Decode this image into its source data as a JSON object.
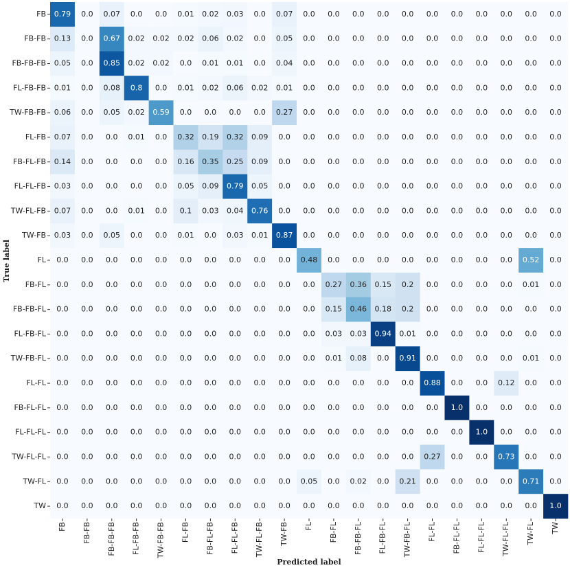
{
  "chart_data": {
    "type": "heatmap",
    "xlabel": "Predicted label",
    "ylabel": "True label",
    "colormap": "Blues",
    "x_categories": [
      "FB",
      "FB-FB",
      "FB-FB-FB",
      "FL-FB-FB",
      "TW-FB-FB",
      "FL-FB",
      "FB-FL-FB",
      "FL-FL-FB",
      "TW-FL-FB",
      "TW-FB",
      "FL",
      "FB-FL",
      "FB-FB-FL",
      "FL-FB-FL",
      "TW-FB-FL",
      "FL-FL",
      "FB-FL-FL",
      "FL-FL-FL",
      "TW-FL-FL",
      "TW-FL",
      "TW"
    ],
    "y_categories": [
      "FB",
      "FB-FB",
      "FB-FB-FB",
      "FL-FB-FB",
      "TW-FB-FB",
      "FL-FB",
      "FB-FL-FB",
      "FL-FL-FB",
      "TW-FL-FB",
      "TW-FB",
      "FL",
      "FB-FL",
      "FB-FB-FL",
      "FL-FB-FL",
      "TW-FB-FL",
      "FL-FL",
      "FB-FL-FL",
      "FL-FL-FL",
      "TW-FL-FL",
      "TW-FL",
      "TW"
    ],
    "values": [
      [
        0.79,
        0,
        0.07,
        0,
        0,
        0.01,
        0.02,
        0.03,
        0,
        0.07,
        0,
        0,
        0,
        0,
        0,
        0,
        0,
        0,
        0,
        0,
        0
      ],
      [
        0.13,
        0,
        0.67,
        0.02,
        0.02,
        0.02,
        0.06,
        0.02,
        0,
        0.05,
        0,
        0,
        0,
        0,
        0,
        0,
        0,
        0,
        0,
        0,
        0
      ],
      [
        0.05,
        0,
        0.85,
        0.02,
        0.02,
        0,
        0.01,
        0.01,
        0,
        0.04,
        0,
        0,
        0,
        0,
        0,
        0,
        0,
        0,
        0,
        0,
        0
      ],
      [
        0.01,
        0,
        0.08,
        0.8,
        0,
        0.01,
        0.02,
        0.06,
        0.02,
        0.01,
        0,
        0,
        0,
        0,
        0,
        0,
        0,
        0,
        0,
        0,
        0
      ],
      [
        0.06,
        0,
        0.05,
        0.02,
        0.59,
        0,
        0,
        0,
        0,
        0.27,
        0,
        0,
        0,
        0,
        0,
        0,
        0,
        0,
        0,
        0,
        0
      ],
      [
        0.07,
        0,
        0,
        0.01,
        0,
        0.32,
        0.19,
        0.32,
        0.09,
        0,
        0,
        0,
        0,
        0,
        0,
        0,
        0,
        0,
        0,
        0,
        0
      ],
      [
        0.14,
        0,
        0,
        0,
        0,
        0.16,
        0.35,
        0.25,
        0.09,
        0,
        0,
        0,
        0,
        0,
        0,
        0,
        0,
        0,
        0,
        0,
        0
      ],
      [
        0.03,
        0,
        0,
        0,
        0,
        0.05,
        0.09,
        0.79,
        0.05,
        0,
        0,
        0,
        0,
        0,
        0,
        0,
        0,
        0,
        0,
        0,
        0
      ],
      [
        0.07,
        0,
        0,
        0.01,
        0,
        0.1,
        0.03,
        0.04,
        0.76,
        0,
        0,
        0,
        0,
        0,
        0,
        0,
        0,
        0,
        0,
        0,
        0
      ],
      [
        0.03,
        0,
        0.05,
        0,
        0,
        0.01,
        0,
        0.03,
        0.01,
        0.87,
        0,
        0,
        0,
        0,
        0,
        0,
        0,
        0,
        0,
        0,
        0
      ],
      [
        0,
        0,
        0,
        0,
        0,
        0,
        0,
        0,
        0,
        0,
        0.48,
        0,
        0,
        0,
        0,
        0,
        0,
        0,
        0,
        0.52,
        0
      ],
      [
        0,
        0,
        0,
        0,
        0,
        0,
        0,
        0,
        0,
        0,
        0,
        0.27,
        0.36,
        0.15,
        0.2,
        0,
        0,
        0,
        0,
        0.01,
        0
      ],
      [
        0,
        0,
        0,
        0,
        0,
        0,
        0,
        0,
        0,
        0,
        0,
        0.15,
        0.46,
        0.18,
        0.2,
        0,
        0,
        0,
        0,
        0,
        0
      ],
      [
        0,
        0,
        0,
        0,
        0,
        0,
        0,
        0,
        0,
        0,
        0,
        0.03,
        0.03,
        0.94,
        0.01,
        0,
        0,
        0,
        0,
        0,
        0
      ],
      [
        0,
        0,
        0,
        0,
        0,
        0,
        0,
        0,
        0,
        0,
        0,
        0.01,
        0.08,
        0,
        0.91,
        0,
        0,
        0,
        0,
        0.01,
        0
      ],
      [
        0,
        0,
        0,
        0,
        0,
        0,
        0,
        0,
        0,
        0,
        0,
        0,
        0,
        0,
        0,
        0.88,
        0,
        0,
        0.12,
        0,
        0
      ],
      [
        0,
        0,
        0,
        0,
        0,
        0,
        0,
        0,
        0,
        0,
        0,
        0,
        0,
        0,
        0,
        0,
        1,
        0,
        0,
        0,
        0
      ],
      [
        0,
        0,
        0,
        0,
        0,
        0,
        0,
        0,
        0,
        0,
        0,
        0,
        0,
        0,
        0,
        0,
        0,
        1,
        0,
        0,
        0
      ],
      [
        0,
        0,
        0,
        0,
        0,
        0,
        0,
        0,
        0,
        0,
        0,
        0,
        0,
        0,
        0,
        0.27,
        0,
        0,
        0.73,
        0,
        0
      ],
      [
        0,
        0,
        0,
        0,
        0,
        0,
        0,
        0,
        0,
        0,
        0.05,
        0,
        0.02,
        0,
        0.21,
        0,
        0,
        0,
        0,
        0.71,
        0
      ],
      [
        0,
        0,
        0,
        0,
        0,
        0,
        0,
        0,
        0,
        0,
        0,
        0,
        0,
        0,
        0,
        0,
        0,
        0,
        0,
        0,
        1
      ]
    ],
    "value_labels": [
      [
        "0.79",
        "0.0",
        "0.07",
        "0.0",
        "0.0",
        "0.01",
        "0.02",
        "0.03",
        "0.0",
        "0.07",
        "0.0",
        "0.0",
        "0.0",
        "0.0",
        "0.0",
        "0.0",
        "0.0",
        "0.0",
        "0.0",
        "0.0",
        "0.0"
      ],
      [
        "0.13",
        "0.0",
        "0.67",
        "0.02",
        "0.02",
        "0.02",
        "0.06",
        "0.02",
        "0.0",
        "0.05",
        "0.0",
        "0.0",
        "0.0",
        "0.0",
        "0.0",
        "0.0",
        "0.0",
        "0.0",
        "0.0",
        "0.0",
        "0.0"
      ],
      [
        "0.05",
        "0.0",
        "0.85",
        "0.02",
        "0.02",
        "0.0",
        "0.01",
        "0.01",
        "0.0",
        "0.04",
        "0.0",
        "0.0",
        "0.0",
        "0.0",
        "0.0",
        "0.0",
        "0.0",
        "0.0",
        "0.0",
        "0.0",
        "0.0"
      ],
      [
        "0.01",
        "0.0",
        "0.08",
        "0.8",
        "0.0",
        "0.01",
        "0.02",
        "0.06",
        "0.02",
        "0.01",
        "0.0",
        "0.0",
        "0.0",
        "0.0",
        "0.0",
        "0.0",
        "0.0",
        "0.0",
        "0.0",
        "0.0",
        "0.0"
      ],
      [
        "0.06",
        "0.0",
        "0.05",
        "0.02",
        "0.59",
        "0.0",
        "0.0",
        "0.0",
        "0.0",
        "0.27",
        "0.0",
        "0.0",
        "0.0",
        "0.0",
        "0.0",
        "0.0",
        "0.0",
        "0.0",
        "0.0",
        "0.0",
        "0.0"
      ],
      [
        "0.07",
        "0.0",
        "0.0",
        "0.01",
        "0.0",
        "0.32",
        "0.19",
        "0.32",
        "0.09",
        "0.0",
        "0.0",
        "0.0",
        "0.0",
        "0.0",
        "0.0",
        "0.0",
        "0.0",
        "0.0",
        "0.0",
        "0.0",
        "0.0"
      ],
      [
        "0.14",
        "0.0",
        "0.0",
        "0.0",
        "0.0",
        "0.16",
        "0.35",
        "0.25",
        "0.09",
        "0.0",
        "0.0",
        "0.0",
        "0.0",
        "0.0",
        "0.0",
        "0.0",
        "0.0",
        "0.0",
        "0.0",
        "0.0",
        "0.0"
      ],
      [
        "0.03",
        "0.0",
        "0.0",
        "0.0",
        "0.0",
        "0.05",
        "0.09",
        "0.79",
        "0.05",
        "0.0",
        "0.0",
        "0.0",
        "0.0",
        "0.0",
        "0.0",
        "0.0",
        "0.0",
        "0.0",
        "0.0",
        "0.0",
        "0.0"
      ],
      [
        "0.07",
        "0.0",
        "0.0",
        "0.01",
        "0.0",
        "0.1",
        "0.03",
        "0.04",
        "0.76",
        "0.0",
        "0.0",
        "0.0",
        "0.0",
        "0.0",
        "0.0",
        "0.0",
        "0.0",
        "0.0",
        "0.0",
        "0.0",
        "0.0"
      ],
      [
        "0.03",
        "0.0",
        "0.05",
        "0.0",
        "0.0",
        "0.01",
        "0.0",
        "0.03",
        "0.01",
        "0.87",
        "0.0",
        "0.0",
        "0.0",
        "0.0",
        "0.0",
        "0.0",
        "0.0",
        "0.0",
        "0.0",
        "0.0",
        "0.0"
      ],
      [
        "0.0",
        "0.0",
        "0.0",
        "0.0",
        "0.0",
        "0.0",
        "0.0",
        "0.0",
        "0.0",
        "0.0",
        "0.48",
        "0.0",
        "0.0",
        "0.0",
        "0.0",
        "0.0",
        "0.0",
        "0.0",
        "0.0",
        "0.52",
        "0.0"
      ],
      [
        "0.0",
        "0.0",
        "0.0",
        "0.0",
        "0.0",
        "0.0",
        "0.0",
        "0.0",
        "0.0",
        "0.0",
        "0.0",
        "0.27",
        "0.36",
        "0.15",
        "0.2",
        "0.0",
        "0.0",
        "0.0",
        "0.0",
        "0.01",
        "0.0"
      ],
      [
        "0.0",
        "0.0",
        "0.0",
        "0.0",
        "0.0",
        "0.0",
        "0.0",
        "0.0",
        "0.0",
        "0.0",
        "0.0",
        "0.15",
        "0.46",
        "0.18",
        "0.2",
        "0.0",
        "0.0",
        "0.0",
        "0.0",
        "0.0",
        "0.0"
      ],
      [
        "0.0",
        "0.0",
        "0.0",
        "0.0",
        "0.0",
        "0.0",
        "0.0",
        "0.0",
        "0.0",
        "0.0",
        "0.0",
        "0.03",
        "0.03",
        "0.94",
        "0.01",
        "0.0",
        "0.0",
        "0.0",
        "0.0",
        "0.0",
        "0.0"
      ],
      [
        "0.0",
        "0.0",
        "0.0",
        "0.0",
        "0.0",
        "0.0",
        "0.0",
        "0.0",
        "0.0",
        "0.0",
        "0.0",
        "0.01",
        "0.08",
        "0.0",
        "0.91",
        "0.0",
        "0.0",
        "0.0",
        "0.0",
        "0.01",
        "0.0"
      ],
      [
        "0.0",
        "0.0",
        "0.0",
        "0.0",
        "0.0",
        "0.0",
        "0.0",
        "0.0",
        "0.0",
        "0.0",
        "0.0",
        "0.0",
        "0.0",
        "0.0",
        "0.0",
        "0.88",
        "0.0",
        "0.0",
        "0.12",
        "0.0",
        "0.0"
      ],
      [
        "0.0",
        "0.0",
        "0.0",
        "0.0",
        "0.0",
        "0.0",
        "0.0",
        "0.0",
        "0.0",
        "0.0",
        "0.0",
        "0.0",
        "0.0",
        "0.0",
        "0.0",
        "0.0",
        "1.0",
        "0.0",
        "0.0",
        "0.0",
        "0.0"
      ],
      [
        "0.0",
        "0.0",
        "0.0",
        "0.0",
        "0.0",
        "0.0",
        "0.0",
        "0.0",
        "0.0",
        "0.0",
        "0.0",
        "0.0",
        "0.0",
        "0.0",
        "0.0",
        "0.0",
        "0.0",
        "1.0",
        "0.0",
        "0.0",
        "0.0"
      ],
      [
        "0.0",
        "0.0",
        "0.0",
        "0.0",
        "0.0",
        "0.0",
        "0.0",
        "0.0",
        "0.0",
        "0.0",
        "0.0",
        "0.0",
        "0.0",
        "0.0",
        "0.0",
        "0.27",
        "0.0",
        "0.0",
        "0.73",
        "0.0",
        "0.0"
      ],
      [
        "0.0",
        "0.0",
        "0.0",
        "0.0",
        "0.0",
        "0.0",
        "0.0",
        "0.0",
        "0.0",
        "0.0",
        "0.05",
        "0.0",
        "0.02",
        "0.0",
        "0.21",
        "0.0",
        "0.0",
        "0.0",
        "0.0",
        "0.71",
        "0.0"
      ],
      [
        "0.0",
        "0.0",
        "0.0",
        "0.0",
        "0.0",
        "0.0",
        "0.0",
        "0.0",
        "0.0",
        "0.0",
        "0.0",
        "0.0",
        "0.0",
        "0.0",
        "0.0",
        "0.0",
        "0.0",
        "0.0",
        "0.0",
        "0.0",
        "1.0"
      ]
    ]
  }
}
